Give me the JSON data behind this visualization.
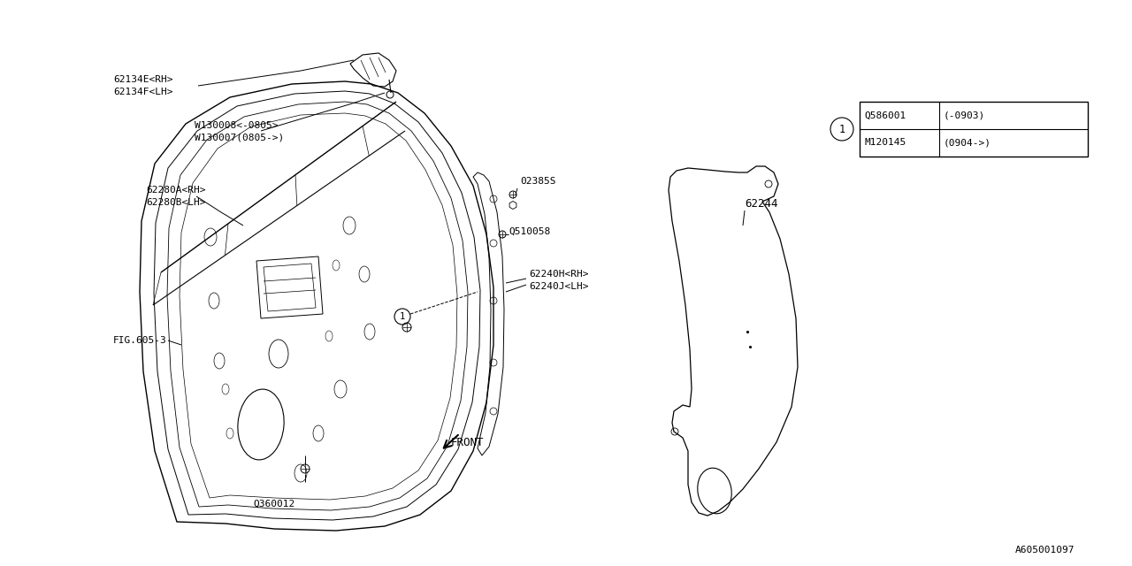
{
  "bg_color": "#ffffff",
  "line_color": "#000000",
  "fig_id": "A605001097",
  "labels": {
    "62134E_RH": "62134E<RH>",
    "62134F_LH": "62134F<LH>",
    "W130008": "W130008<-0805>",
    "W130007": "W130007(0805->)",
    "62280A_RH": "62280A<RH>",
    "62280B_LH": "62280B<LH>",
    "02385": "02385S",
    "Q510058": "Q510058",
    "62240H_RH": "62240H<RH>",
    "62240J_LH": "62240J<LH>",
    "Q360012": "Q360012",
    "FIG605_3": "FIG.605-3",
    "62244": "62244",
    "FRONT": "FRONT",
    "circle1_part1": "Q586001",
    "circle1_date1": "(-0903)",
    "circle1_part2": "M120145",
    "circle1_date2": "(0904->)"
  },
  "font_size": 8.0
}
